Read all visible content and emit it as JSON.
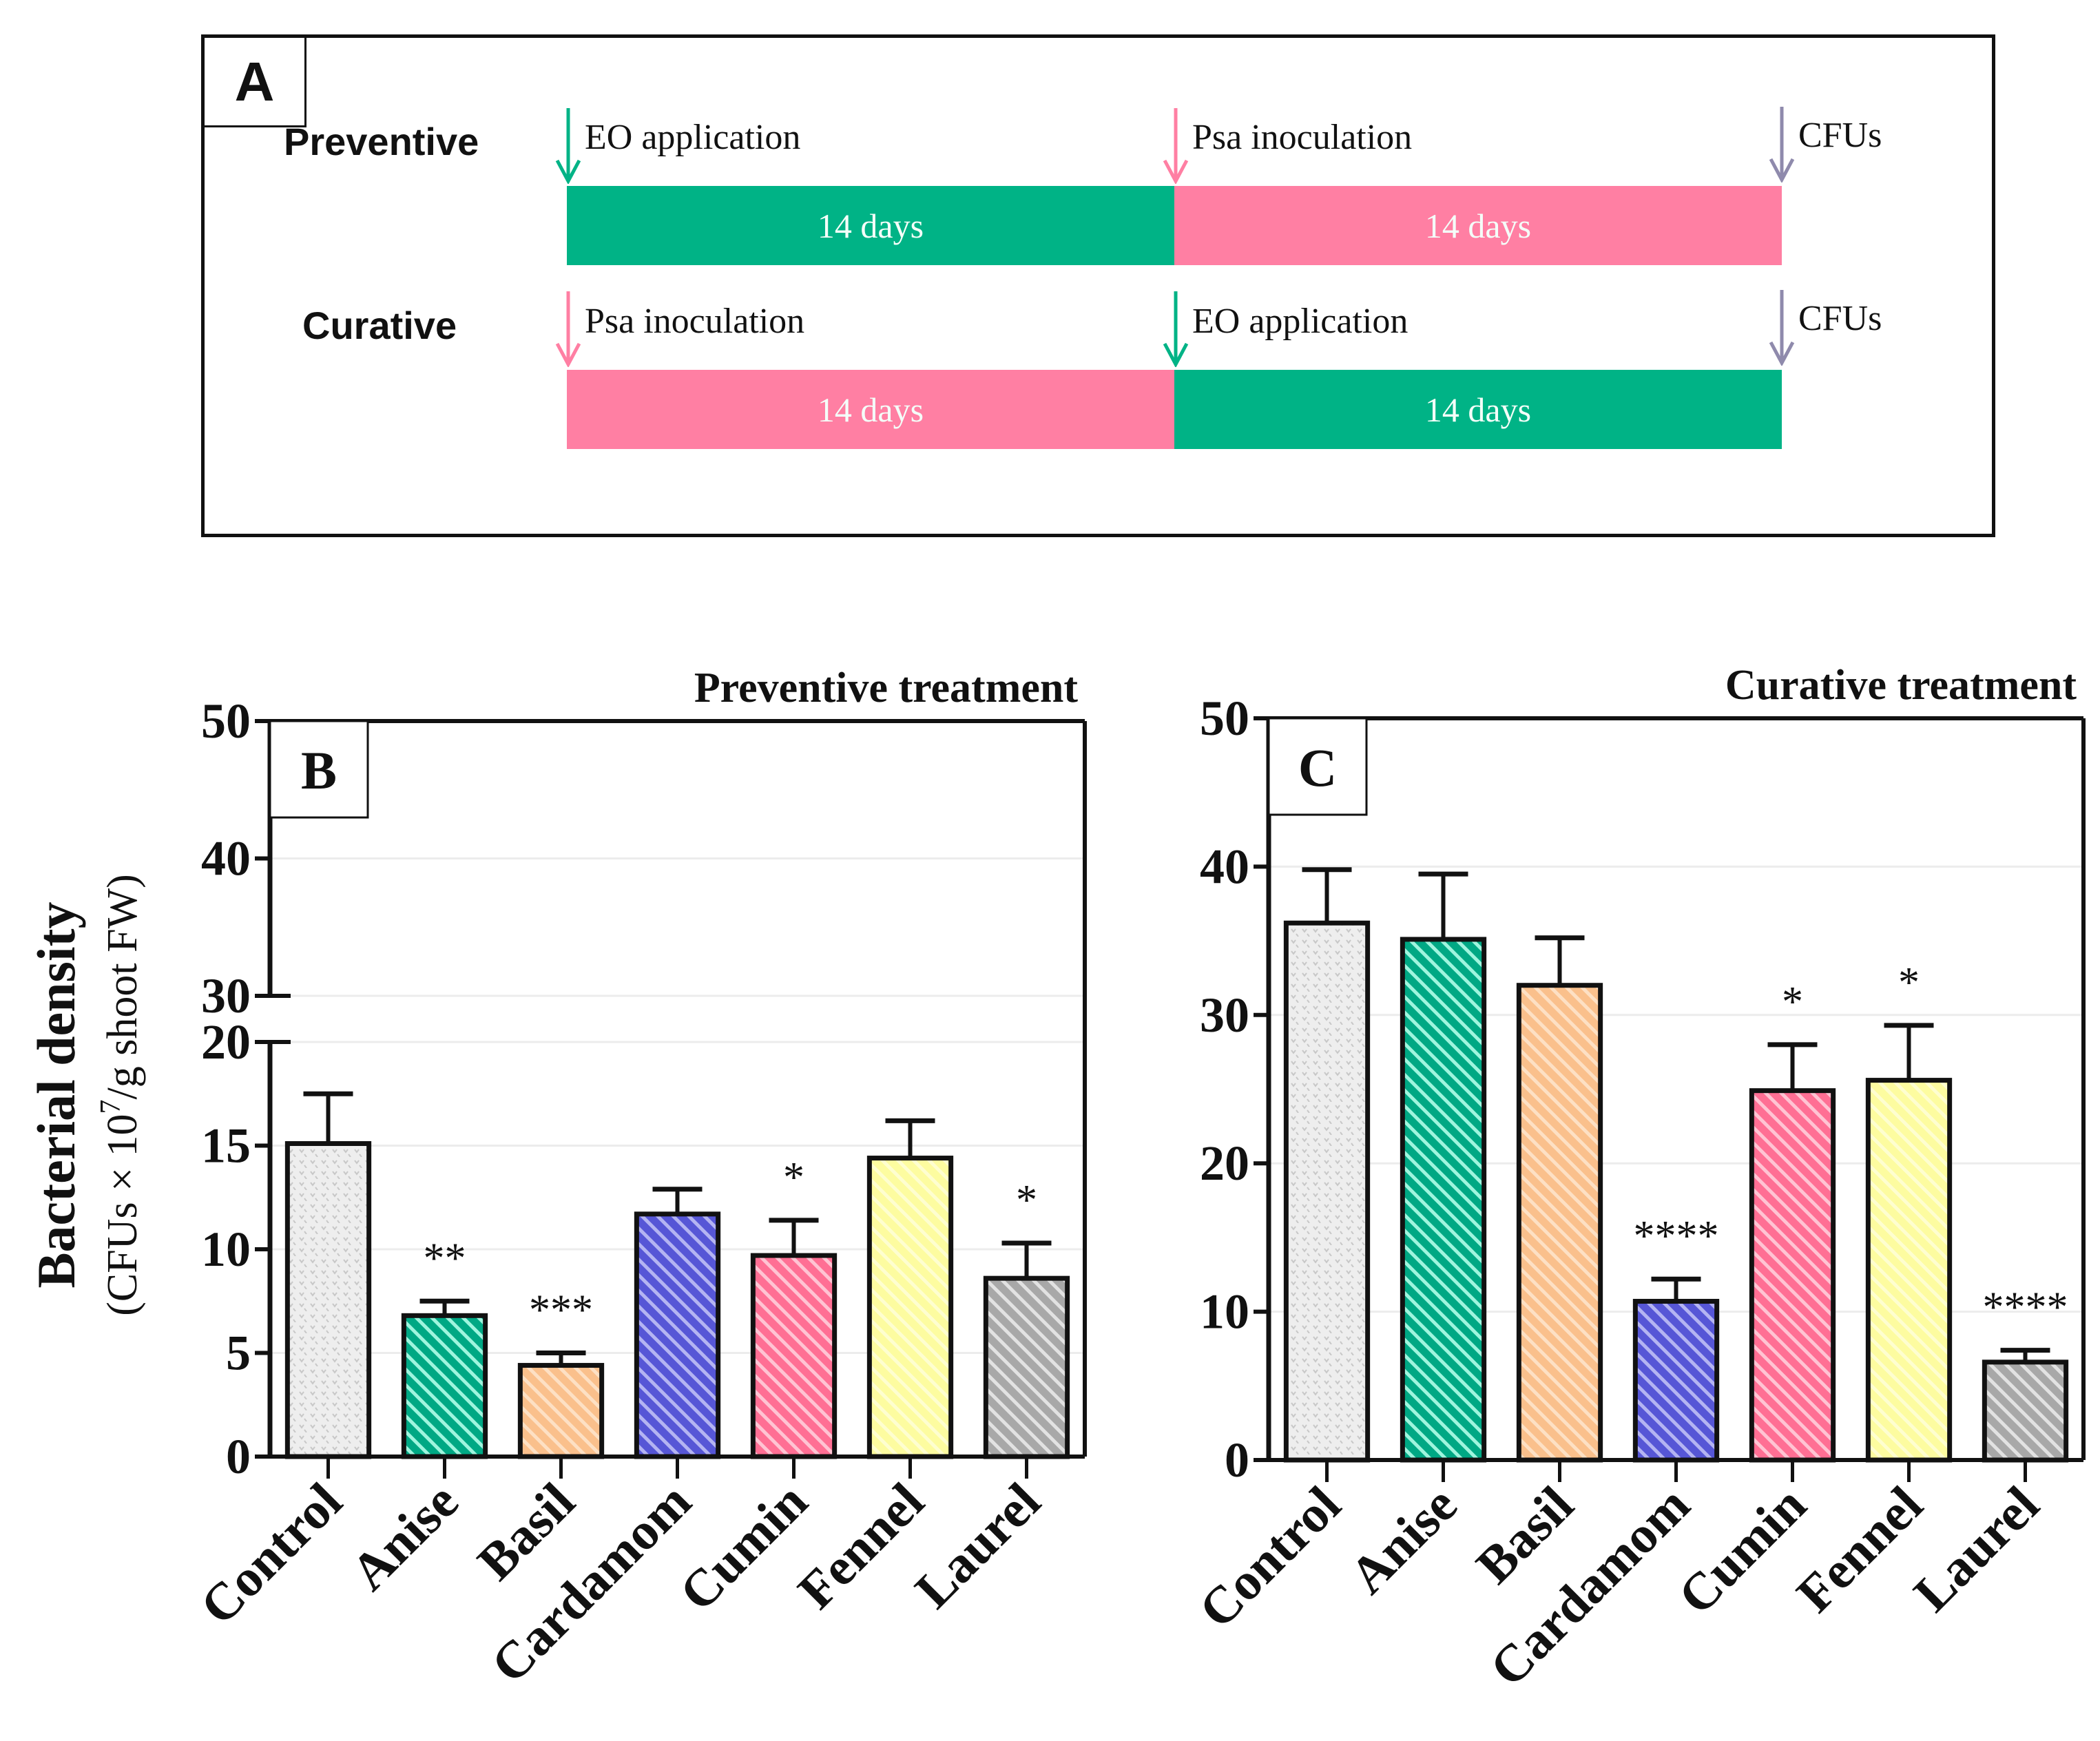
{
  "panelA": {
    "tag": "A",
    "colors": {
      "eo": "#00b386",
      "psa": "#ff7fa3",
      "cfu": "#8f8aac"
    },
    "rows": [
      {
        "label": "Preventive",
        "segments": [
          {
            "text": "14 days",
            "kind": "eo"
          },
          {
            "text": "14 days",
            "kind": "psa"
          }
        ],
        "events": [
          {
            "text": "EO application",
            "kind": "eo"
          },
          {
            "text": "Psa inoculation",
            "kind": "psa"
          },
          {
            "text": "CFUs",
            "kind": "cfu"
          }
        ]
      },
      {
        "label": "Curative",
        "segments": [
          {
            "text": "14 days",
            "kind": "psa"
          },
          {
            "text": "14 days",
            "kind": "eo"
          }
        ],
        "events": [
          {
            "text": "Psa inoculation",
            "kind": "psa"
          },
          {
            "text": "EO application",
            "kind": "eo"
          },
          {
            "text": "CFUs",
            "kind": "cfu"
          }
        ]
      }
    ]
  },
  "chart_data": [
    {
      "id": "B",
      "type": "bar",
      "panel_tag": "B",
      "title": "Preventive treatment",
      "ylabel": "Bacterial density",
      "ylabel_sub": "(CFUs × 10^7/g shoot FW)",
      "ylabel_sub_parts": [
        "(CFUs × 10",
        "7",
        "/g shoot FW)"
      ],
      "xlabel": "",
      "axis_break": {
        "lower": [
          0,
          20
        ],
        "upper": [
          30,
          50
        ]
      },
      "ylim": [
        0,
        50
      ],
      "yticks_lower": [
        0,
        5,
        10,
        15,
        20
      ],
      "yticks_upper": [
        30,
        40,
        50
      ],
      "categories": [
        "Control",
        "Anise",
        "Basil",
        "Cardamom",
        "Cumin",
        "Fennel",
        "Laurel"
      ],
      "values": [
        15.1,
        6.8,
        4.4,
        11.7,
        9.7,
        14.4,
        8.6
      ],
      "error_upper": [
        17.5,
        7.5,
        5.0,
        12.9,
        11.4,
        16.2,
        10.3
      ],
      "significance": [
        "",
        "**",
        "***",
        "",
        "*",
        "",
        "*"
      ],
      "grid": true
    },
    {
      "id": "C",
      "type": "bar",
      "panel_tag": "C",
      "title": "Curative treatment",
      "ylabel": "",
      "xlabel": "",
      "ylim": [
        0,
        50
      ],
      "yticks": [
        0,
        10,
        20,
        30,
        40,
        50
      ],
      "categories": [
        "Control",
        "Anise",
        "Basil",
        "Cardamom",
        "Cumin",
        "Fennel",
        "Laurel"
      ],
      "values": [
        36.2,
        35.1,
        32.0,
        10.7,
        24.9,
        25.6,
        6.6
      ],
      "error_upper": [
        39.8,
        39.5,
        35.2,
        12.2,
        28.0,
        29.3,
        7.4
      ],
      "significance": [
        "",
        "",
        "",
        "****",
        "*",
        "*",
        "****"
      ],
      "grid": true
    }
  ],
  "bar_styles": [
    {
      "category": "Control",
      "fill": "#eeeeee",
      "pattern": "dots",
      "stroke": "#c8c8c8"
    },
    {
      "category": "Anise",
      "fill": "#00a884",
      "pattern": "hatch",
      "stroke": "#9ff5de"
    },
    {
      "category": "Basil",
      "fill": "#fac08c",
      "pattern": "hatch",
      "stroke": "#fde0c4"
    },
    {
      "category": "Cardamom",
      "fill": "#5656d6",
      "pattern": "hatch",
      "stroke": "#b4b4f2"
    },
    {
      "category": "Cumin",
      "fill": "#ff6f94",
      "pattern": "hatch",
      "stroke": "#ffc4d3"
    },
    {
      "category": "Fennel",
      "fill": "#fdfca0",
      "pattern": "hatch",
      "stroke": "#fefed0"
    },
    {
      "category": "Laurel",
      "fill": "#a8a8a8",
      "pattern": "hatch",
      "stroke": "#e2e2e2"
    }
  ]
}
